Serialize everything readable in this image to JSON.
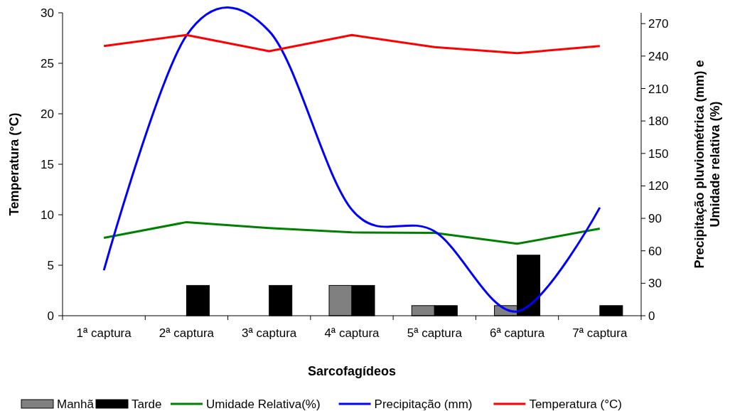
{
  "chart_data": {
    "type": "bar",
    "xlabel": "Sarcofagídeos",
    "ylabel": "Temperatura (°C)",
    "y2label": "Precipitação pluviométrica (mm) e Umidade relativa (%)",
    "categories": [
      "1ª captura",
      "2ª captura",
      "3ª captura",
      "4ª captura",
      "5ª captura",
      "6ª captura",
      "7ª captura"
    ],
    "series": [
      {
        "name": "Manhã",
        "color": "#808080",
        "values": [
          0,
          0,
          0,
          3,
          1,
          1,
          0
        ]
      },
      {
        "name": "Tarde",
        "color": "#000000",
        "values": [
          0,
          3,
          3,
          3,
          1,
          6,
          1
        ]
      },
      {
        "name": "Umidade Relativa(%)",
        "type": "line",
        "axis": "y2",
        "color": "#008000",
        "values": [
          72,
          86.5,
          81,
          77,
          76.5,
          66.5,
          80.5
        ]
      },
      {
        "name": "Precipitação (mm)",
        "type": "line",
        "axis": "y2",
        "color": "#0000ff",
        "values": [
          42,
          259,
          263,
          98,
          78,
          4,
          100
        ]
      },
      {
        "name": "Temperatura (°C)",
        "type": "line",
        "color": "#ff0000",
        "values": [
          26.7,
          27.8,
          26.2,
          27.8,
          26.6,
          26.0,
          26.7
        ]
      }
    ],
    "ylim": [
      0,
      30
    ],
    "yticks": [
      0,
      5,
      10,
      15,
      20,
      25,
      30
    ],
    "y2lim": [
      0,
      280
    ],
    "y2ticks": [
      0,
      30,
      60,
      90,
      120,
      150,
      180,
      210,
      240,
      270
    ],
    "legend": "bottom",
    "grid": false
  }
}
